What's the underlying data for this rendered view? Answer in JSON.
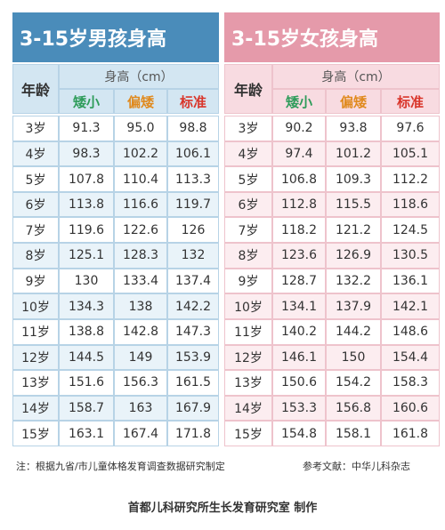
{
  "tables": [
    {
      "title": "3-15岁男孩身高",
      "age_header": "年龄",
      "height_header": "身高（cm）",
      "columns": [
        "矮小",
        "偏矮",
        "标准"
      ],
      "rows": [
        [
          "3岁",
          "91.3",
          "95.0",
          "98.8"
        ],
        [
          "4岁",
          "98.3",
          "102.2",
          "106.1"
        ],
        [
          "5岁",
          "107.8",
          "110.4",
          "113.3"
        ],
        [
          "6岁",
          "113.8",
          "116.6",
          "119.7"
        ],
        [
          "7岁",
          "119.6",
          "122.6",
          "126"
        ],
        [
          "8岁",
          "125.1",
          "128.3",
          "132"
        ],
        [
          "9岁",
          "130",
          "133.4",
          "137.4"
        ],
        [
          "10岁",
          "134.3",
          "138",
          "142.2"
        ],
        [
          "11岁",
          "138.8",
          "142.8",
          "147.3"
        ],
        [
          "12岁",
          "144.5",
          "149",
          "153.9"
        ],
        [
          "13岁",
          "151.6",
          "156.3",
          "161.5"
        ],
        [
          "14岁",
          "158.7",
          "163",
          "167.9"
        ],
        [
          "15岁",
          "163.1",
          "167.4",
          "171.8"
        ]
      ]
    },
    {
      "title": "3-15岁女孩身高",
      "age_header": "年龄",
      "height_header": "身高（cm）",
      "columns": [
        "矮小",
        "偏矮",
        "标准"
      ],
      "rows": [
        [
          "3岁",
          "90.2",
          "93.8",
          "97.6"
        ],
        [
          "4岁",
          "97.4",
          "101.2",
          "105.1"
        ],
        [
          "5岁",
          "106.8",
          "109.3",
          "112.2"
        ],
        [
          "6岁",
          "112.8",
          "115.5",
          "118.6"
        ],
        [
          "7岁",
          "118.2",
          "121.2",
          "124.5"
        ],
        [
          "8岁",
          "123.6",
          "126.9",
          "130.5"
        ],
        [
          "9岁",
          "128.7",
          "132.2",
          "136.1"
        ],
        [
          "10岁",
          "134.1",
          "137.9",
          "142.1"
        ],
        [
          "11岁",
          "140.2",
          "144.2",
          "148.6"
        ],
        [
          "12岁",
          "146.1",
          "150",
          "154.4"
        ],
        [
          "13岁",
          "150.6",
          "154.2",
          "158.3"
        ],
        [
          "14岁",
          "153.3",
          "156.8",
          "160.6"
        ],
        [
          "15岁",
          "154.8",
          "158.1",
          "161.8"
        ]
      ]
    }
  ],
  "footer": {
    "note": "注：根据九省/市儿童体格发育调查数据研究制定",
    "reference": "参考文献：中华儿科杂志",
    "credit": "首都儿科研究所生长发育研究室 制作"
  }
}
